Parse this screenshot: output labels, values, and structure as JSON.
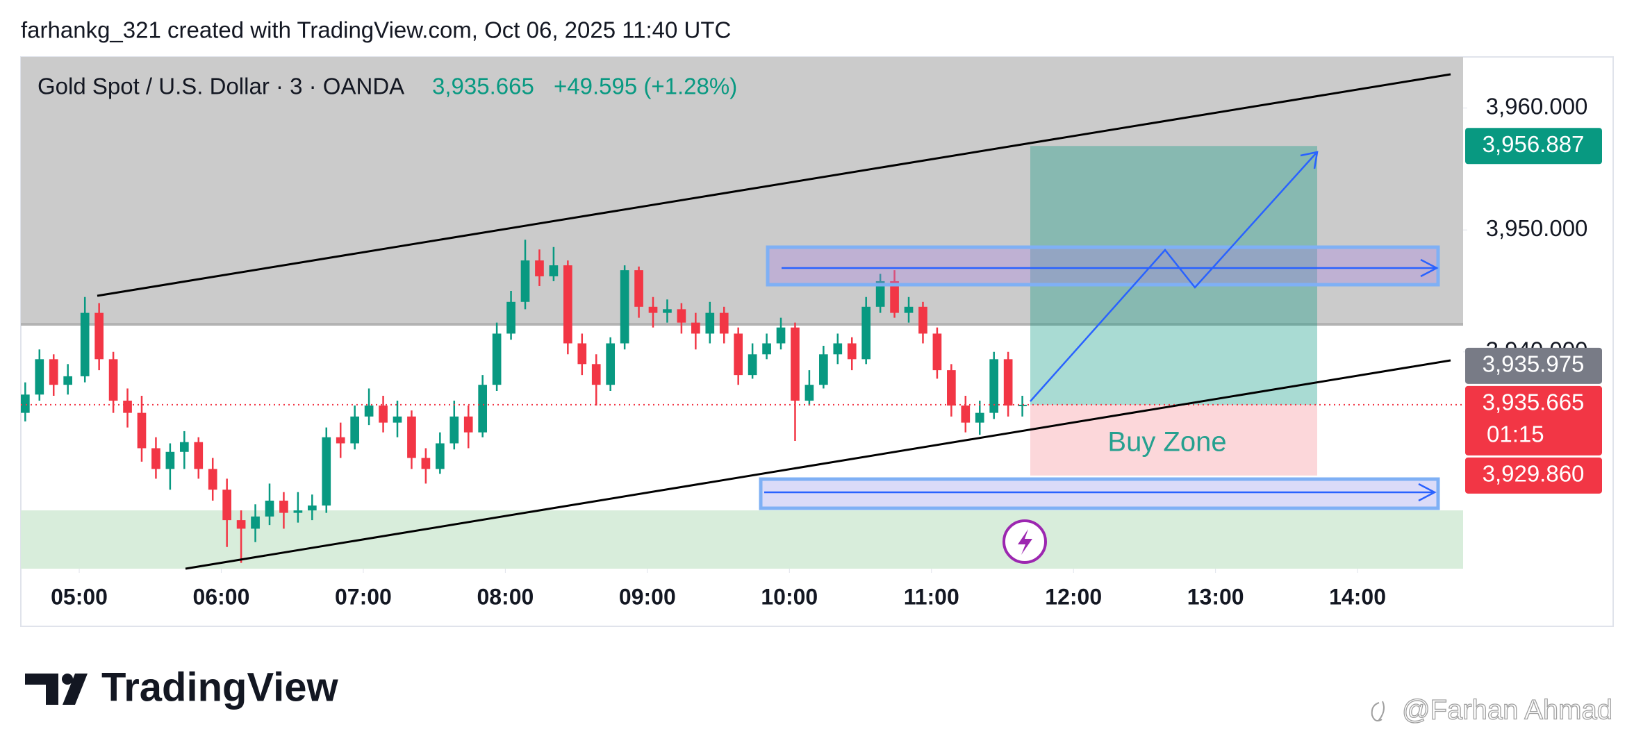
{
  "chart_data": {
    "type": "candlestick",
    "title": "farhankg_321 created with TradingView.com, Oct 06, 2025 11:40 UTC",
    "legend": {
      "symbol": "Gold Spot / U.S. Dollar · 3 · OANDA",
      "price": "3,935.665",
      "change": "+49.595 (+1.28%)"
    },
    "up_color": "#089981",
    "down_color": "#f23645",
    "xlim": [
      4.589,
      14.743
    ],
    "xticks": [
      {
        "value": 5,
        "label": "05:00"
      },
      {
        "value": 6,
        "label": "06:00"
      },
      {
        "value": 7,
        "label": "07:00"
      },
      {
        "value": 8,
        "label": "08:00"
      },
      {
        "value": 9,
        "label": "09:00"
      },
      {
        "value": 10,
        "label": "10:00"
      },
      {
        "value": 11,
        "label": "11:00"
      },
      {
        "value": 12,
        "label": "12:00"
      },
      {
        "value": 13,
        "label": "13:00"
      },
      {
        "value": 14,
        "label": "14:00"
      }
    ],
    "ylim": [
      3922.22,
      3964.19
    ],
    "yticks": [
      {
        "value": 3960,
        "label": "3,960.000"
      },
      {
        "value": 3950,
        "label": "3,950.000"
      },
      {
        "value": 3940,
        "label": "3,940.000"
      }
    ],
    "x": [
      4.62,
      4.72,
      4.82,
      4.92,
      5.04,
      5.14,
      5.24,
      5.34,
      5.44,
      5.54,
      5.64,
      5.74,
      5.84,
      5.94,
      6.04,
      6.14,
      6.24,
      6.34,
      6.44,
      6.54,
      6.64,
      6.74,
      6.84,
      6.94,
      7.04,
      7.14,
      7.24,
      7.34,
      7.44,
      7.54,
      7.64,
      7.74,
      7.84,
      7.94,
      8.04,
      8.14,
      8.24,
      8.34,
      8.44,
      8.54,
      8.64,
      8.74,
      8.84,
      8.94,
      9.04,
      9.14,
      9.24,
      9.34,
      9.44,
      9.54,
      9.64,
      9.74,
      9.84,
      9.94,
      10.04,
      10.14,
      10.24,
      10.34,
      10.44,
      10.54,
      10.64,
      10.74,
      10.84,
      10.94,
      11.04,
      11.14,
      11.24,
      11.34,
      11.44,
      11.54,
      11.64
    ],
    "open": [
      3935.0,
      3936.5,
      3939.4,
      3937.3,
      3938.0,
      3943.2,
      3939.4,
      3936.0,
      3935.0,
      3932.1,
      3930.4,
      3931.8,
      3932.6,
      3930.4,
      3928.7,
      3926.2,
      3925.5,
      3926.5,
      3927.8,
      3926.8,
      3927.0,
      3927.4,
      3933.0,
      3932.5,
      3934.7,
      3935.6,
      3934.2,
      3934.7,
      3931.3,
      3930.4,
      3932.5,
      3934.7,
      3933.4,
      3937.3,
      3941.5,
      3944.1,
      3947.5,
      3946.2,
      3947.1,
      3940.7,
      3939.0,
      3937.3,
      3940.7,
      3946.7,
      3943.7,
      3943.2,
      3943.5,
      3942.4,
      3941.5,
      3943.2,
      3941.5,
      3938.1,
      3939.8,
      3940.7,
      3942.0,
      3936.0,
      3937.3,
      3939.8,
      3940.7,
      3939.4,
      3943.7,
      3945.8,
      3943.2,
      3943.7,
      3941.5,
      3938.5,
      3935.6,
      3934.2,
      3935.0,
      3939.4,
      3935.6
    ],
    "high": [
      3937.5,
      3940.2,
      3939.8,
      3939.0,
      3944.5,
      3944.0,
      3940.0,
      3937.0,
      3936.4,
      3933.0,
      3932.5,
      3933.5,
      3933.0,
      3931.3,
      3929.6,
      3927.0,
      3927.5,
      3929.2,
      3928.5,
      3928.5,
      3928.3,
      3933.8,
      3934.2,
      3935.6,
      3937.0,
      3936.4,
      3936.0,
      3935.2,
      3932.1,
      3933.4,
      3936.0,
      3935.6,
      3938.1,
      3942.4,
      3945.0,
      3949.2,
      3948.4,
      3948.6,
      3947.5,
      3941.5,
      3939.8,
      3941.2,
      3947.1,
      3947.0,
      3944.5,
      3944.3,
      3944.0,
      3943.2,
      3944.1,
      3943.7,
      3942.0,
      3940.7,
      3941.5,
      3942.8,
      3942.4,
      3938.5,
      3940.5,
      3941.5,
      3941.2,
      3944.5,
      3946.4,
      3946.7,
      3944.5,
      3944.1,
      3942.0,
      3939.0,
      3936.4,
      3936.0,
      3940.0,
      3940.0,
      3936.4
    ],
    "low": [
      3934.3,
      3936.0,
      3936.4,
      3936.5,
      3937.5,
      3938.5,
      3935.0,
      3933.8,
      3931.0,
      3929.6,
      3928.7,
      3930.4,
      3929.6,
      3927.8,
      3924.0,
      3922.7,
      3924.4,
      3925.8,
      3925.5,
      3926.0,
      3926.2,
      3926.8,
      3931.3,
      3932.0,
      3934.0,
      3933.4,
      3933.0,
      3930.4,
      3929.2,
      3930.0,
      3932.0,
      3932.1,
      3933.0,
      3936.8,
      3941.0,
      3943.5,
      3945.4,
      3945.8,
      3939.8,
      3938.1,
      3935.6,
      3936.8,
      3940.2,
      3942.8,
      3942.0,
      3942.4,
      3941.5,
      3940.2,
      3940.7,
      3940.7,
      3937.3,
      3937.8,
      3939.4,
      3940.2,
      3932.7,
      3935.6,
      3937.0,
      3939.0,
      3938.5,
      3939.0,
      3943.2,
      3942.8,
      3942.4,
      3940.7,
      3937.8,
      3934.7,
      3933.4,
      3933.2,
      3934.5,
      3934.7,
      3934.7
    ],
    "close": [
      3936.5,
      3939.4,
      3937.3,
      3938.0,
      3943.2,
      3939.4,
      3936.0,
      3935.0,
      3932.1,
      3930.4,
      3931.8,
      3932.6,
      3930.4,
      3928.7,
      3926.2,
      3925.5,
      3926.5,
      3927.8,
      3926.8,
      3927.0,
      3927.4,
      3933.0,
      3932.5,
      3934.7,
      3935.6,
      3934.2,
      3934.7,
      3931.3,
      3930.4,
      3932.5,
      3934.7,
      3933.4,
      3937.3,
      3941.5,
      3944.1,
      3947.5,
      3946.2,
      3947.1,
      3940.7,
      3939.0,
      3937.3,
      3940.7,
      3946.7,
      3943.7,
      3943.2,
      3943.5,
      3942.4,
      3941.5,
      3943.2,
      3941.5,
      3938.1,
      3939.8,
      3940.7,
      3942.0,
      3936.0,
      3937.3,
      3939.8,
      3940.7,
      3939.4,
      3943.7,
      3945.8,
      3943.2,
      3943.7,
      3941.5,
      3938.5,
      3935.6,
      3934.2,
      3935.0,
      3939.4,
      3935.6,
      3935.665
    ],
    "price_labels": [
      {
        "value": 3956.887,
        "label": "3,956.887",
        "color": "#089981"
      },
      {
        "value": 3935.975,
        "label": "3,935.975",
        "color": "#787b86"
      },
      {
        "value": 3935.665,
        "label": "3,935.665",
        "color": "#f23645",
        "countdown": "01:15"
      },
      {
        "value": 3929.86,
        "label": "3,929.860",
        "color": "#f23645"
      }
    ],
    "annotations": [
      "Buy Zone"
    ],
    "branding": "TradingView",
    "watermark": "@Farhan Ahmad"
  }
}
